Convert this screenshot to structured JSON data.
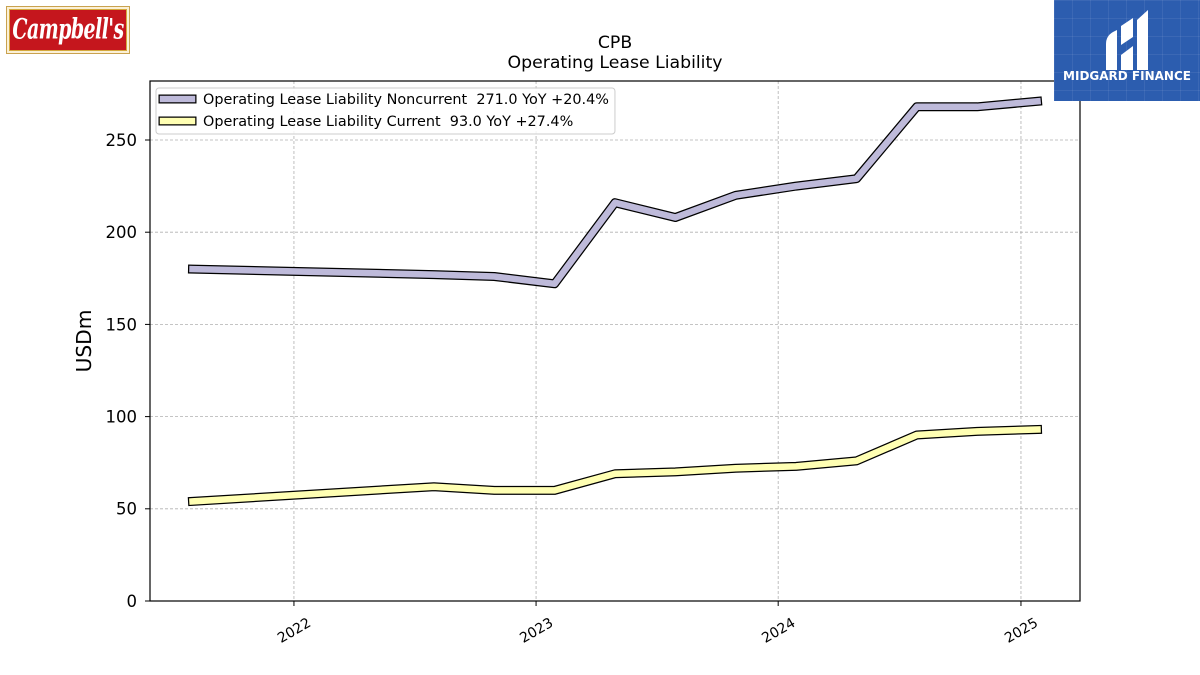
{
  "logos": {
    "left_brand": "Campbell's",
    "right_brand": "MIDGARD FINANCE"
  },
  "colors": {
    "left_brand_red": "#c5161d",
    "right_brand_blue": "#2c5daf",
    "line_outline": "#000000",
    "grid": "#b0b0b0"
  },
  "chart_data": {
    "type": "line",
    "title": "CPB",
    "subtitle": "Operating Lease Liability",
    "ylabel": "USDm",
    "x": [
      "2021-08-01",
      "2022-07-31",
      "2022-10-30",
      "2023-01-29",
      "2023-04-30",
      "2023-07-30",
      "2023-10-29",
      "2024-01-28",
      "2024-04-28",
      "2024-07-28",
      "2024-10-27",
      "2025-01-26"
    ],
    "xlim": [
      "2021-05-29",
      "2025-03-31"
    ],
    "ylim": [
      0,
      282
    ],
    "xticks": [
      "2022",
      "2023",
      "2024",
      "2025"
    ],
    "yticks": [
      0,
      50,
      100,
      150,
      200,
      250
    ],
    "grid": true,
    "legend_position": "upper left",
    "series": [
      {
        "name": "Operating Lease Liability Noncurrent",
        "latest": "271.0",
        "change": "YoY +20.4%",
        "color": "#bebada",
        "values": [
          180,
          177,
          176,
          172,
          216,
          208,
          220,
          225,
          229,
          268,
          268,
          271
        ]
      },
      {
        "name": "Operating Lease Liability Current",
        "latest": "93.0",
        "change": "YoY +27.4%",
        "color": "#ffffb3",
        "values": [
          54,
          62,
          60,
          60,
          69,
          70,
          72,
          73,
          76,
          90,
          92,
          93
        ]
      }
    ]
  }
}
